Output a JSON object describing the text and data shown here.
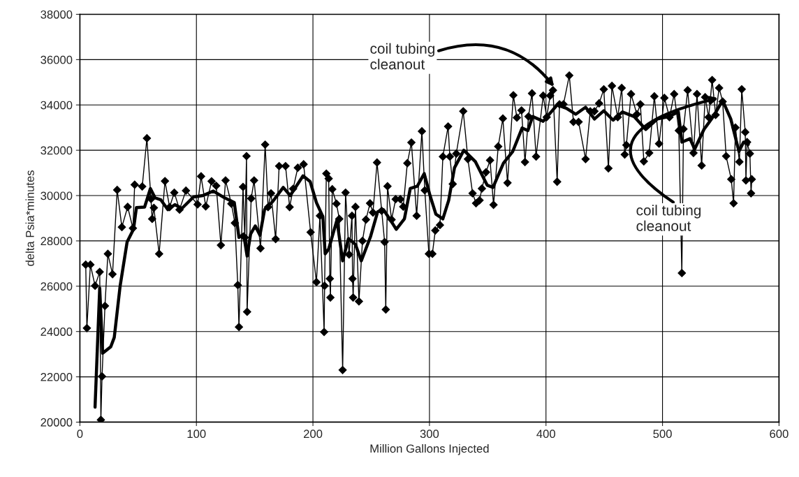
{
  "chart_data": {
    "type": "line",
    "xlabel": "Million Gallons Injected",
    "ylabel": "delta Psia*minutes",
    "xlim": [
      0,
      600
    ],
    "xticks": [
      0,
      100,
      200,
      300,
      400,
      500,
      600
    ],
    "ylim": [
      20000,
      38000
    ],
    "yticks": [
      20000,
      22000,
      24000,
      26000,
      28000,
      30000,
      32000,
      34000,
      36000,
      38000
    ],
    "grid": true,
    "legend": false,
    "series": [
      {
        "color": "#000000",
        "marker": "diamond",
        "line_style": "solid",
        "x": [
          5,
          6,
          9,
          13,
          17,
          18,
          19,
          21.5,
          24,
          28,
          32,
          36,
          41,
          45.5,
          47,
          53.5,
          57.5,
          61,
          62,
          63.5,
          68,
          73,
          77,
          81,
          85.5,
          91,
          101,
          104,
          108,
          113,
          117,
          121,
          125,
          130,
          133,
          135.5,
          136.5,
          140,
          141.5,
          143,
          143.5,
          147,
          149.5,
          155,
          159,
          161.5,
          164,
          168,
          171,
          176.5,
          180,
          183,
          187,
          192,
          198,
          203,
          206,
          209.6,
          210,
          211.5,
          213.5,
          214.5,
          215,
          216.6,
          220.2,
          222.6,
          225.5,
          228,
          231,
          233.5,
          234,
          234.5,
          236.5,
          239.5,
          242.5,
          245.5,
          249,
          251.5,
          255,
          259,
          261.5,
          262.5,
          264,
          267.5,
          271,
          275,
          277.5,
          281,
          284.5,
          289,
          293.5,
          296,
          299.5,
          302.5,
          305,
          309,
          311.5,
          316,
          317.5,
          320,
          323,
          329,
          333,
          337,
          340,
          343,
          345,
          348.5,
          352,
          355,
          359,
          363,
          367,
          372,
          375,
          379,
          382,
          385,
          388,
          391.5,
          397.6,
          400.6,
          403.6,
          406,
          409.6,
          411.6,
          415,
          420,
          423.6,
          428,
          434,
          438,
          441.6,
          445.6,
          449.6,
          453.6,
          456.6,
          461.6,
          465,
          467.6,
          469,
          473,
          478,
          481,
          484,
          488.6,
          493,
          497,
          501.6,
          506,
          510,
          514,
          516.6,
          518,
          521.6,
          526.6,
          529.6,
          533.6,
          536.6,
          539.6,
          542.6,
          545.6,
          548.6,
          551.6,
          554.6,
          559,
          561,
          562.6,
          566,
          568,
          571,
          571.6,
          572.6,
          575,
          576,
          576.6
        ],
        "values": [
          26950,
          24150,
          26950,
          26020,
          26630,
          20100,
          22020,
          25130,
          27430,
          26530,
          30250,
          28610,
          29500,
          28560,
          30480,
          30400,
          32530,
          29850,
          28970,
          29460,
          27430,
          30640,
          29490,
          30130,
          29380,
          30220,
          29610,
          30850,
          29520,
          30630,
          30430,
          27810,
          30670,
          29640,
          28790,
          26050,
          24200,
          30380,
          28150,
          31740,
          24870,
          29870,
          30670,
          27670,
          32250,
          29490,
          30100,
          28080,
          31300,
          31300,
          29490,
          30300,
          31230,
          31380,
          28380,
          26180,
          29110,
          23980,
          26020,
          30970,
          30750,
          26330,
          25500,
          30280,
          29640,
          28970,
          22300,
          30130,
          27400,
          29110,
          26330,
          25500,
          29500,
          25330,
          28000,
          28940,
          29660,
          29250,
          31460,
          29330,
          27950,
          24970,
          30410,
          28940,
          29840,
          29840,
          29510,
          31430,
          32340,
          29110,
          32840,
          30230,
          27430,
          27430,
          28460,
          28700,
          31720,
          33050,
          31720,
          30510,
          31850,
          33720,
          31610,
          30100,
          29660,
          29790,
          30310,
          31030,
          31560,
          29590,
          32170,
          33400,
          30560,
          34430,
          33440,
          33760,
          31480,
          33490,
          34510,
          31720,
          34410,
          33460,
          34410,
          34650,
          30610,
          34030,
          34030,
          35300,
          33250,
          33250,
          31610,
          33720,
          33720,
          34070,
          34690,
          31200,
          34840,
          33460,
          34750,
          31810,
          32230,
          34480,
          33590,
          34030,
          31510,
          31880,
          34380,
          32290,
          34310,
          33460,
          34480,
          32870,
          26580,
          32940,
          34650,
          31880,
          34480,
          31330,
          34340,
          33460,
          35100,
          33560,
          34750,
          34150,
          31740,
          30720,
          29660,
          33000,
          31490,
          34690,
          32800,
          30670,
          32360,
          31850,
          30100,
          30720
        ]
      },
      {
        "color": "#000000",
        "marker": "none",
        "line_style": "solid",
        "x": [
          13,
          17,
          19.5,
          26.5,
          29.5,
          34.5,
          40.5,
          46,
          48.5,
          55.5,
          60.5,
          64.5,
          69.5,
          75.5,
          81.5,
          87.5,
          97.5,
          105.5,
          114.5,
          123.5,
          132.5,
          136.5,
          140.5,
          143.5,
          146.5,
          150.5,
          154.5,
          158.5,
          165.5,
          174.5,
          180.5,
          191.5,
          197.6,
          203,
          208.5,
          210.5,
          213.5,
          220.6,
          225.5,
          230.5,
          236.5,
          241.5,
          249.5,
          255.5,
          260.5,
          266.5,
          271.5,
          278.5,
          283.5,
          289.5,
          295.5,
          300.5,
          305.5,
          311.5,
          316.5,
          321.5,
          329.5,
          339.5,
          349.5,
          354.5,
          363.5,
          371.5,
          379.5,
          384.5,
          388.5,
          397.6,
          409.6,
          417.6,
          425.6,
          434,
          441.6,
          449.6,
          457.6,
          465.6,
          475.6,
          485.6,
          495.6,
          505.6,
          513.6,
          516.6,
          523.6,
          527.6,
          535.6,
          543.6,
          551.6,
          558.6,
          562.6,
          565.6,
          569.6,
          573.6
        ],
        "values": [
          20660,
          25920,
          23040,
          23330,
          23740,
          26000,
          27950,
          28510,
          29470,
          29490,
          30310,
          29900,
          29810,
          29380,
          29600,
          29430,
          29940,
          30000,
          30200,
          29920,
          29690,
          28150,
          28300,
          27330,
          28300,
          28660,
          28250,
          29380,
          29740,
          30360,
          30000,
          30870,
          30620,
          29690,
          29070,
          27430,
          27640,
          28920,
          27120,
          28100,
          27840,
          27120,
          28200,
          29280,
          29380,
          28920,
          28510,
          28970,
          30310,
          30410,
          30970,
          30000,
          29180,
          28970,
          29790,
          31230,
          32000,
          31490,
          30460,
          30360,
          31430,
          31950,
          32980,
          32870,
          33490,
          33280,
          34000,
          33850,
          33590,
          33900,
          33380,
          33740,
          33330,
          33690,
          33490,
          32920,
          33380,
          33490,
          33690,
          32360,
          32510,
          32050,
          32920,
          33490,
          34200,
          33380,
          32560,
          31950,
          32360,
          32260
        ]
      }
    ],
    "annotations": [
      {
        "text": "coil tubing\ncleanout",
        "x": 407,
        "y": 34800
      },
      {
        "text": "coil tubing\ncleanout",
        "x": 548,
        "y": 34300
      }
    ]
  }
}
